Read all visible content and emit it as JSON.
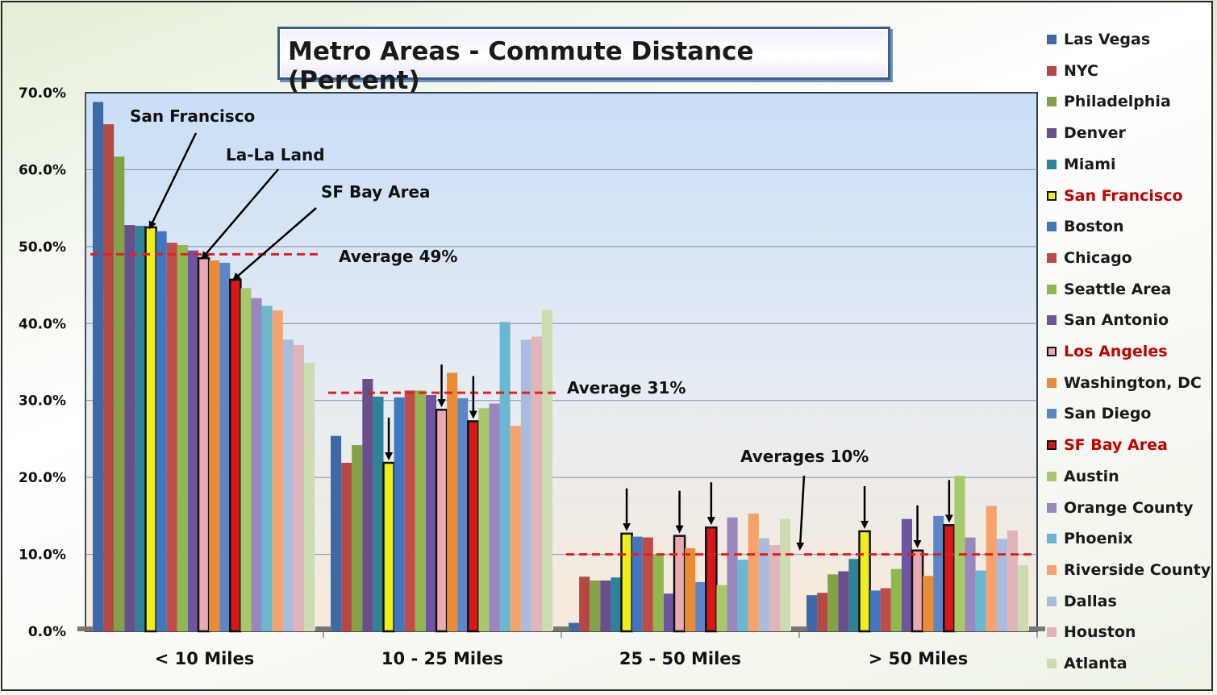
{
  "colors": {
    "highlight_border": "#111111",
    "average_line": "#e02020",
    "legend_red_text": "#c00000"
  },
  "chart_data": {
    "type": "bar",
    "title": "Metro Areas - Commute Distance (Percent)",
    "xlabel": "",
    "ylabel": "",
    "ylim": [
      0,
      0.7
    ],
    "y_ticks": [
      "0.0%",
      "10.0%",
      "20.0%",
      "30.0%",
      "40.0%",
      "50.0%",
      "60.0%",
      "70.0%"
    ],
    "grid": true,
    "legend_position": "right",
    "categories": [
      "< 10 Miles",
      "10 - 25 Miles",
      "25 - 50 Miles",
      "> 50 Miles"
    ],
    "series": [
      {
        "name": "Las Vegas",
        "color": "#3d6aa6",
        "values": [
          0.688,
          0.254,
          0.011,
          0.047
        ]
      },
      {
        "name": "NYC",
        "color": "#b64844",
        "values": [
          0.659,
          0.219,
          0.071,
          0.05
        ]
      },
      {
        "name": "Philadelphia",
        "color": "#83a245",
        "values": [
          0.617,
          0.242,
          0.066,
          0.074
        ]
      },
      {
        "name": "Denver",
        "color": "#674f8a",
        "values": [
          0.528,
          0.328,
          0.066,
          0.078
        ]
      },
      {
        "name": "Miami",
        "color": "#2f8399",
        "values": [
          0.527,
          0.305,
          0.07,
          0.094
        ]
      },
      {
        "name": "San Francisco",
        "color": "#f2ee1a",
        "highlight": true,
        "values": [
          0.525,
          0.219,
          0.127,
          0.13
        ]
      },
      {
        "name": "Boston",
        "color": "#3f77c0",
        "values": [
          0.52,
          0.304,
          0.123,
          0.053
        ]
      },
      {
        "name": "Chicago",
        "color": "#bf4c47",
        "values": [
          0.505,
          0.313,
          0.122,
          0.056
        ]
      },
      {
        "name": "Seattle Area",
        "color": "#8fb84f",
        "values": [
          0.502,
          0.313,
          0.1,
          0.081
        ]
      },
      {
        "name": "San Antonio",
        "color": "#6e55a0",
        "values": [
          0.495,
          0.307,
          0.049,
          0.146
        ]
      },
      {
        "name": "Los Angeles",
        "color": "#eaaab0",
        "highlight": true,
        "values": [
          0.485,
          0.288,
          0.124,
          0.105
        ]
      },
      {
        "name": "Washington, DC",
        "color": "#ea8b35",
        "values": [
          0.482,
          0.336,
          0.108,
          0.072
        ]
      },
      {
        "name": "San Diego",
        "color": "#5b87c6",
        "values": [
          0.479,
          0.303,
          0.064,
          0.15
        ]
      },
      {
        "name": "SF Bay Area",
        "color": "#d81818",
        "highlight": true,
        "values": [
          0.457,
          0.273,
          0.135,
          0.138
        ]
      },
      {
        "name": "Austin",
        "color": "#a9c86b",
        "values": [
          0.446,
          0.29,
          0.06,
          0.202
        ]
      },
      {
        "name": "Orange County",
        "color": "#9a87bd",
        "values": [
          0.433,
          0.296,
          0.148,
          0.122
        ]
      },
      {
        "name": "Phoenix",
        "color": "#6ab7d2",
        "values": [
          0.423,
          0.402,
          0.093,
          0.079
        ]
      },
      {
        "name": "Riverside County",
        "color": "#f5a36a",
        "values": [
          0.417,
          0.267,
          0.153,
          0.163
        ]
      },
      {
        "name": "Dallas",
        "color": "#a9bcdd",
        "values": [
          0.379,
          0.379,
          0.121,
          0.12
        ]
      },
      {
        "name": "Houston",
        "color": "#e2b4b9",
        "values": [
          0.372,
          0.383,
          0.112,
          0.131
        ]
      },
      {
        "name": "Atlanta",
        "color": "#cddbb3",
        "values": [
          0.349,
          0.418,
          0.146,
          0.086
        ]
      }
    ],
    "averages": [
      {
        "category_index": 0,
        "value": 0.49,
        "label": "Average 49%"
      },
      {
        "category_index": 1,
        "value": 0.31,
        "label": "Average 31%"
      },
      {
        "category_index": 2,
        "value": 0.1,
        "label": "Averages 10%"
      },
      {
        "category_index": 3,
        "value": 0.1,
        "label": ""
      }
    ],
    "annotations": [
      "San Francisco",
      "La-La Land",
      "SF Bay Area"
    ]
  }
}
